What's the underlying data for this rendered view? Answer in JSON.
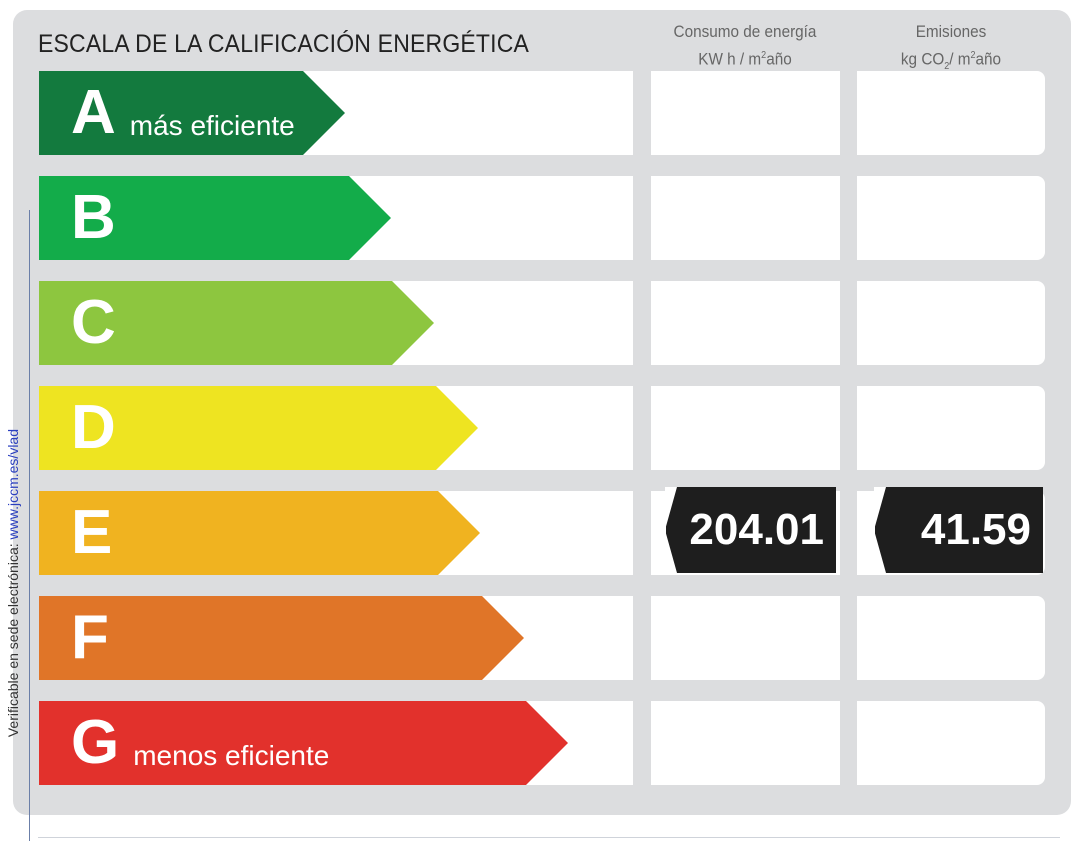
{
  "title": "ESCALA DE LA CALIFICACIÓN ENERGÉTICA",
  "columns": {
    "energy": {
      "line1": "Consumo de energía",
      "line2_pre": "KW h / m",
      "line2_sup": "2",
      "line2_post": "año"
    },
    "emissions": {
      "line1": "Emisiones",
      "line2_pre": "kg CO",
      "line2_sub": "2",
      "line2_mid": "/ m",
      "line2_sup": "2",
      "line2_post": "año"
    }
  },
  "ratings": [
    {
      "letter": "A",
      "description": "más eficiente",
      "color": "#137a3e"
    },
    {
      "letter": "B",
      "description": "",
      "color": "#13ac4a"
    },
    {
      "letter": "C",
      "description": "",
      "color": "#8dc63f"
    },
    {
      "letter": "D",
      "description": "",
      "color": "#eee421"
    },
    {
      "letter": "E",
      "description": "",
      "color": "#f0b320"
    },
    {
      "letter": "F",
      "description": "",
      "color": "#e07528"
    },
    {
      "letter": "G",
      "description": "menos eficiente",
      "color": "#e2312c"
    }
  ],
  "current": {
    "letter": "E",
    "energy_value": "204.01",
    "emissions_value": "41.59"
  },
  "side_note": {
    "text": "Verificable en sede electrónica: ",
    "link": "www.jccm.es/vlad"
  }
}
